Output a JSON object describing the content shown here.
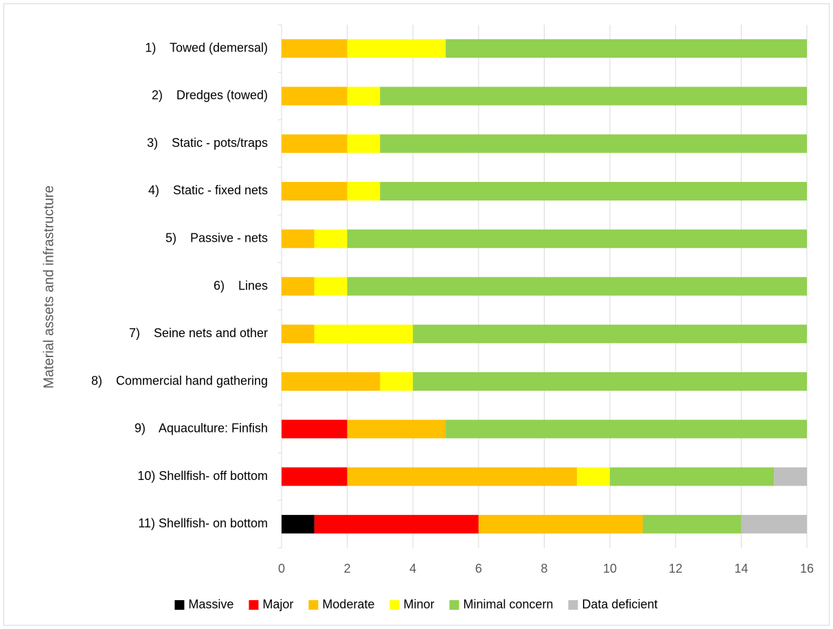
{
  "chart_data": {
    "type": "bar",
    "orientation": "horizontal",
    "stacked": true,
    "title": "",
    "xlabel": "",
    "ylabel": "Material assets and infrastructure",
    "xlim": [
      0,
      16
    ],
    "xticks": [
      "0",
      "2",
      "4",
      "6",
      "8",
      "10",
      "12",
      "14",
      "16"
    ],
    "grid": true,
    "legend_position": "bottom",
    "categories": [
      "1)    Towed (demersal)",
      "2)    Dredges (towed)",
      "3)    Static - pots/traps",
      "4)    Static - fixed nets",
      "5)    Passive - nets",
      "6)    Lines",
      "7)    Seine nets and other",
      "8)    Commercial hand gathering",
      "9)    Aquaculture: Finfish",
      "10) Shellfish- off bottom",
      "11) Shellfish- on bottom"
    ],
    "series": [
      {
        "name": "Massive",
        "color": "#000000",
        "values": [
          0,
          0,
          0,
          0,
          0,
          0,
          0,
          0,
          0,
          0,
          1
        ]
      },
      {
        "name": "Major",
        "color": "#ff0000",
        "values": [
          0,
          0,
          0,
          0,
          0,
          0,
          0,
          0,
          2,
          2,
          5
        ]
      },
      {
        "name": "Moderate",
        "color": "#ffc000",
        "values": [
          2,
          2,
          2,
          2,
          1,
          1,
          1,
          3,
          3,
          7,
          5
        ]
      },
      {
        "name": "Minor",
        "color": "#ffff00",
        "values": [
          3,
          1,
          1,
          1,
          1,
          1,
          3,
          1,
          0,
          1,
          0
        ]
      },
      {
        "name": "Minimal concern",
        "color": "#92d050",
        "values": [
          11,
          13,
          13,
          13,
          14,
          14,
          12,
          12,
          11,
          5,
          3
        ]
      },
      {
        "name": "Data deficient",
        "color": "#bfbfbf",
        "values": [
          0,
          0,
          0,
          0,
          0,
          0,
          0,
          0,
          0,
          1,
          2
        ]
      }
    ]
  }
}
